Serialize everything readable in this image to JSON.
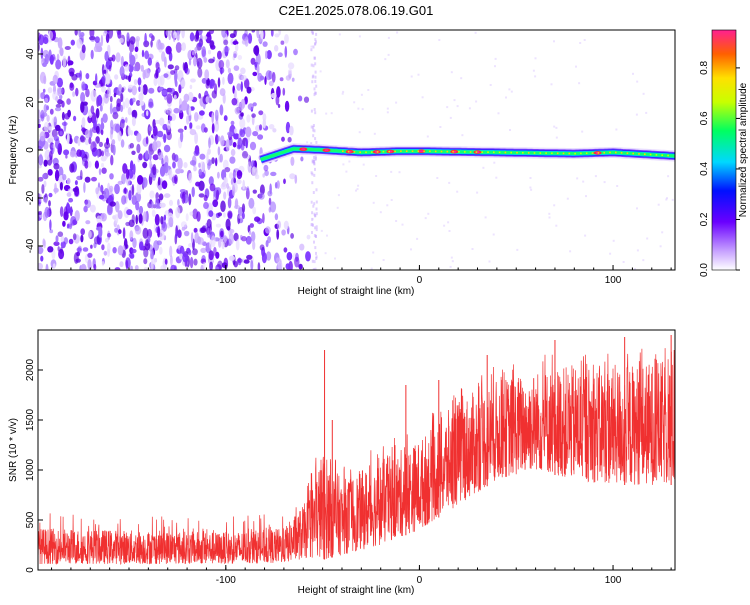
{
  "title": "C2E1.2025.078.06.19.G01",
  "chart_data": [
    {
      "type": "heatmap",
      "xlabel": "Height of straight line (km)",
      "ylabel": "Frequency (Hz)",
      "xlim": [
        -197,
        132
      ],
      "ylim": [
        -50,
        50
      ],
      "xticks": [
        -100,
        0,
        100
      ],
      "yticks": [
        -40,
        -20,
        0,
        20,
        40
      ],
      "colorbar": {
        "label": "Normalized spectral amplitude",
        "range": [
          0,
          0.95
        ],
        "ticks": [
          0.0,
          0.2,
          0.4,
          0.6,
          0.8
        ]
      },
      "description_points": {
        "noise_region_x": [
          -197,
          -65
        ],
        "signal_line": [
          {
            "x": -82,
            "f": -4.0
          },
          {
            "x": -65,
            "f": 0.5
          },
          {
            "x": -50,
            "f": 0.0
          },
          {
            "x": -30,
            "f": -1.0
          },
          {
            "x": -10,
            "f": -0.5
          },
          {
            "x": 0,
            "f": -0.5
          },
          {
            "x": 40,
            "f": -1.0
          },
          {
            "x": 80,
            "f": -1.5
          },
          {
            "x": 100,
            "f": -1.0
          },
          {
            "x": 132,
            "f": -2.5
          }
        ]
      }
    },
    {
      "type": "line",
      "xlabel": "Height of straight line (km)",
      "ylabel": "SNR (10 * v/v)",
      "xlim": [
        -197,
        132
      ],
      "ylim": [
        0,
        2400
      ],
      "xticks": [
        -100,
        0,
        100
      ],
      "yticks": [
        0,
        500,
        1000,
        1500,
        2000
      ],
      "line_color": "#f03030",
      "envelope": [
        {
          "x": -197,
          "lo": 60,
          "hi": 420
        },
        {
          "x": -150,
          "lo": 60,
          "hi": 400
        },
        {
          "x": -100,
          "lo": 60,
          "hi": 380
        },
        {
          "x": -70,
          "lo": 70,
          "hi": 420
        },
        {
          "x": -58,
          "lo": 120,
          "hi": 700
        },
        {
          "x": -50,
          "lo": 100,
          "hi": 1200
        },
        {
          "x": -40,
          "lo": 150,
          "hi": 900
        },
        {
          "x": -20,
          "lo": 250,
          "hi": 1100
        },
        {
          "x": 0,
          "lo": 400,
          "hi": 1300
        },
        {
          "x": 20,
          "lo": 650,
          "hi": 1700
        },
        {
          "x": 40,
          "lo": 900,
          "hi": 1900
        },
        {
          "x": 60,
          "lo": 1000,
          "hi": 2000
        },
        {
          "x": 80,
          "lo": 900,
          "hi": 2050
        },
        {
          "x": 100,
          "lo": 850,
          "hi": 2050
        },
        {
          "x": 132,
          "lo": 850,
          "hi": 2100
        }
      ],
      "spikes": [
        {
          "x": -49,
          "y": 2200
        },
        {
          "x": -45,
          "y": 1500
        },
        {
          "x": -7,
          "y": 1850
        },
        {
          "x": 10,
          "y": 1900
        },
        {
          "x": 35,
          "y": 2150
        },
        {
          "x": 70,
          "y": 2300
        },
        {
          "x": 106,
          "y": 2330
        },
        {
          "x": 130,
          "y": 2350
        }
      ]
    }
  ]
}
